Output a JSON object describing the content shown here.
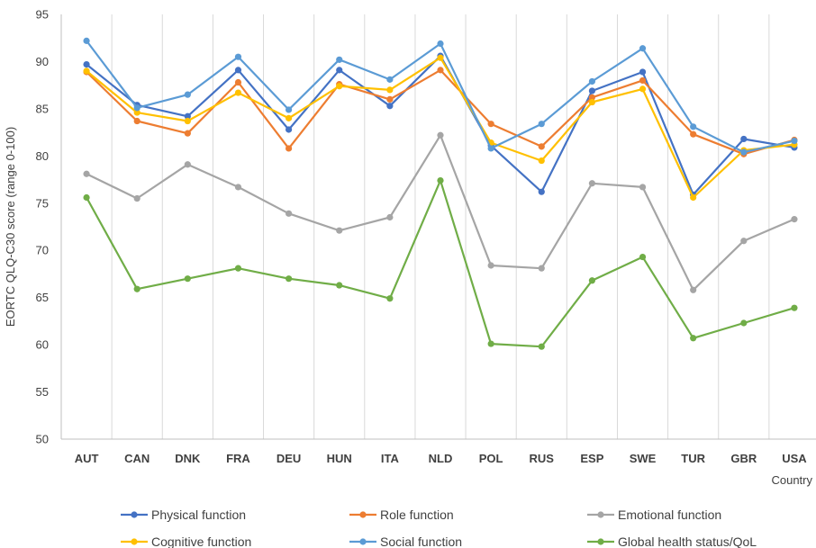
{
  "chart_data": {
    "type": "line",
    "xlabel": "Country",
    "ylabel": "EORTC QLQ-C30 score (range 0-100)",
    "ylim": [
      50,
      95
    ],
    "yticks": [
      50,
      55,
      60,
      65,
      70,
      75,
      80,
      85,
      90,
      95
    ],
    "grid": "vertical gridlines between categories",
    "legend_position": "bottom",
    "categories": [
      "AUT",
      "CAN",
      "DNK",
      "FRA",
      "DEU",
      "HUN",
      "ITA",
      "NLD",
      "POL",
      "RUS",
      "ESP",
      "SWE",
      "TUR",
      "GBR",
      "USA"
    ],
    "series": [
      {
        "name": "Physical function",
        "color": "#4472C4",
        "values": [
          89.7,
          85.4,
          84.2,
          89.1,
          82.8,
          89.1,
          85.3,
          90.6,
          81.1,
          76.2,
          86.9,
          88.9,
          75.9,
          81.8,
          80.9
        ]
      },
      {
        "name": "Role function",
        "color": "#ED7D31",
        "values": [
          88.9,
          83.7,
          82.4,
          87.8,
          80.8,
          87.6,
          86.0,
          89.1,
          83.4,
          81.0,
          86.2,
          88.0,
          82.3,
          80.2,
          81.7
        ]
      },
      {
        "name": "Emotional function",
        "color": "#A5A5A5",
        "values": [
          78.1,
          75.5,
          79.1,
          76.7,
          73.9,
          72.1,
          73.5,
          82.2,
          68.4,
          68.1,
          77.1,
          76.7,
          65.8,
          71.0,
          73.3
        ]
      },
      {
        "name": "Cognitive function",
        "color": "#FFC000",
        "values": [
          89.0,
          84.6,
          83.7,
          86.7,
          84.0,
          87.4,
          87.0,
          90.4,
          81.4,
          79.5,
          85.7,
          87.1,
          75.6,
          80.6,
          81.2
        ]
      },
      {
        "name": "Social function",
        "color": "#5B9BD5",
        "values": [
          92.2,
          85.1,
          86.5,
          90.5,
          84.9,
          90.2,
          88.1,
          91.9,
          80.8,
          83.4,
          87.9,
          91.4,
          83.1,
          80.4,
          81.6
        ]
      },
      {
        "name": "Global health status/QoL",
        "color": "#70AD47",
        "values": [
          75.6,
          65.9,
          67.0,
          68.1,
          67.0,
          66.3,
          64.9,
          77.4,
          60.1,
          59.8,
          66.8,
          69.3,
          60.7,
          62.3,
          63.9
        ]
      }
    ]
  }
}
